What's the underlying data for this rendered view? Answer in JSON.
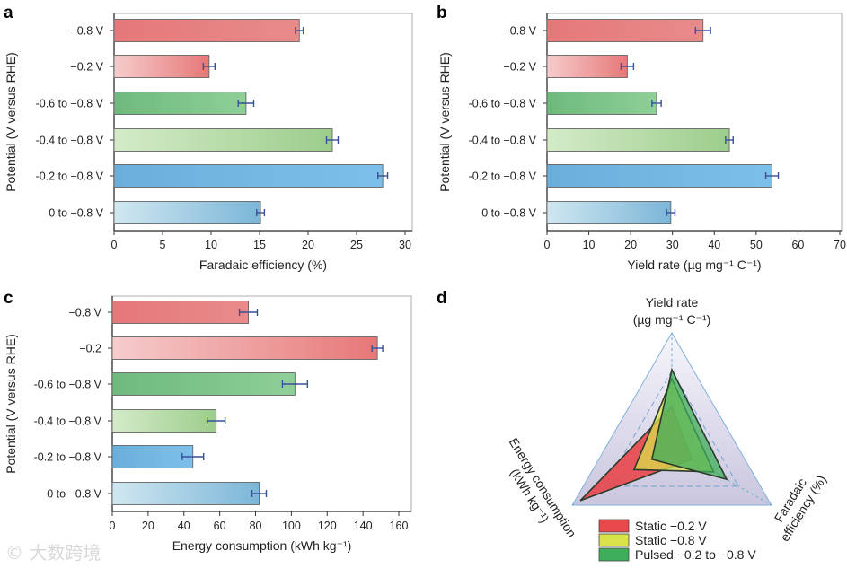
{
  "watermark": "大数跨境",
  "colors": {
    "error_bar": "#3a4f9a",
    "axis": "#333333",
    "frame": "#bbbbbb"
  },
  "chart_data": [
    {
      "panel": "a",
      "type": "bar",
      "orientation": "horizontal",
      "categories": [
        "−0.8 V",
        "−0.2 V",
        "-0.6 to −0.8 V",
        "-0.4 to −0.8 V",
        "-0.2 to −0.8 V",
        "0 to −0.8 V"
      ],
      "values": [
        19.1,
        9.8,
        13.6,
        22.5,
        27.7,
        15.1
      ],
      "errors": [
        0.4,
        0.6,
        0.8,
        0.6,
        0.5,
        0.4
      ],
      "xlabel": "Faradaic efficiency (%)",
      "ylabel": "Potential (V versus RHE)",
      "xlim": [
        0,
        31
      ],
      "xticks": [
        0,
        5,
        10,
        15,
        20,
        25,
        30
      ]
    },
    {
      "panel": "b",
      "type": "bar",
      "orientation": "horizontal",
      "categories": [
        "−0.8 V",
        "−0.2 V",
        "-0.6 to −0.8 V",
        "-0.4 to −0.8 V",
        "-0.2 to −0.8 V",
        "0 to −0.8 V"
      ],
      "values": [
        37.3,
        19.2,
        26.2,
        43.6,
        53.8,
        29.6
      ],
      "errors": [
        1.8,
        1.5,
        1.1,
        0.9,
        1.5,
        1.0
      ],
      "xlabel": "Yield rate (µg mg⁻¹ C⁻¹)",
      "ylabel": "Potential (V versus RHE)",
      "xlim": [
        0,
        70
      ],
      "xticks": [
        0,
        10,
        20,
        30,
        40,
        50,
        60,
        70
      ]
    },
    {
      "panel": "c",
      "type": "bar",
      "orientation": "horizontal",
      "categories": [
        "−0.8 V",
        "−0.2",
        "-0.6 to −0.8 V",
        "-0.4 to −0.8 V",
        "-0.2 to −0.8 V",
        "0 to −0.8 V"
      ],
      "values": [
        76,
        148,
        102,
        58,
        45,
        82
      ],
      "errors": [
        5,
        3,
        7,
        5,
        6,
        4
      ],
      "xlabel": "Energy consumption (kWh kg⁻¹)",
      "ylabel": "Potential (V versus RHE)",
      "xlim": [
        0,
        165
      ],
      "xticks": [
        0,
        20,
        40,
        60,
        80,
        100,
        120,
        140,
        160
      ]
    },
    {
      "panel": "d",
      "type": "radar",
      "axes": [
        "Yield rate",
        "Faradaic efficiency (%)",
        "Energy consumption"
      ],
      "axis_labels": {
        "yield_line1": "Yield rate",
        "yield_line2": "(µg mg⁻¹ C⁻¹)",
        "fe_line1": "Faradaic",
        "fe_line2": "efficiency (%)",
        "energy_line1": "Energy consumption",
        "energy_line2": "(kWh kg⁻¹)"
      },
      "series": [
        {
          "name": "Static −0.2 V",
          "color": "#e8474c",
          "values": [
            0.36,
            0.2,
            0.92
          ]
        },
        {
          "name": "Static −0.8 V",
          "color": "#d8e04a",
          "values": [
            0.6,
            0.42,
            0.38
          ]
        },
        {
          "name": "Pulsed −0.2 to −0.8 V",
          "color": "#3fae5a",
          "values": [
            0.68,
            0.55,
            0.2
          ]
        }
      ],
      "legend_position": "bottom"
    }
  ]
}
